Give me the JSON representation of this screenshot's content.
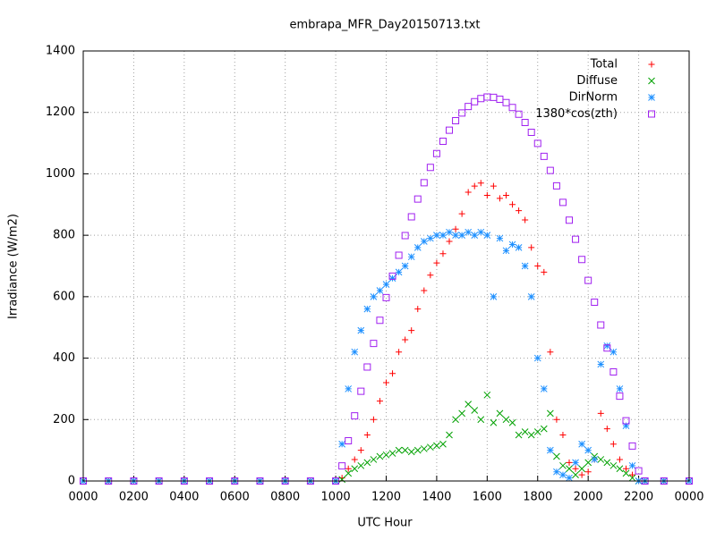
{
  "chart_data": {
    "type": "scatter",
    "title": "embrapa_MFR_Day20150713.txt",
    "x_label": "UTC Hour",
    "y_label": "Irradiance (W/m2)",
    "xlim": [
      0,
      24
    ],
    "ylim": [
      0,
      1400
    ],
    "xticks": [
      {
        "value": 0,
        "label": "0000"
      },
      {
        "value": 2,
        "label": "0200"
      },
      {
        "value": 4,
        "label": "0400"
      },
      {
        "value": 6,
        "label": "0600"
      },
      {
        "value": 8,
        "label": "0800"
      },
      {
        "value": 10,
        "label": "1000"
      },
      {
        "value": 12,
        "label": "1200"
      },
      {
        "value": 14,
        "label": "1400"
      },
      {
        "value": 16,
        "label": "1600"
      },
      {
        "value": 18,
        "label": "1800"
      },
      {
        "value": 20,
        "label": "2000"
      },
      {
        "value": 22,
        "label": "2200"
      },
      {
        "value": 24,
        "label": "0000"
      }
    ],
    "yticks": [
      0,
      200,
      400,
      600,
      800,
      1000,
      1200,
      1400
    ],
    "grid": true,
    "legend": "top-right",
    "x": [
      0,
      1,
      2,
      3,
      4,
      5,
      6,
      7,
      8,
      9,
      10,
      10.25,
      10.5,
      10.75,
      11,
      11.25,
      11.5,
      11.75,
      12,
      12.25,
      12.5,
      12.75,
      13,
      13.25,
      13.5,
      13.75,
      14,
      14.25,
      14.5,
      14.75,
      15,
      15.25,
      15.5,
      15.75,
      16,
      16.25,
      16.5,
      16.75,
      17,
      17.25,
      17.5,
      17.75,
      18,
      18.25,
      18.5,
      18.75,
      19,
      19.25,
      19.5,
      19.75,
      20,
      20.25,
      20.5,
      20.75,
      21,
      21.25,
      21.5,
      21.75,
      22,
      22.25,
      23,
      24
    ],
    "series": [
      {
        "name": "Total",
        "color": "#ff0000",
        "marker": "plus",
        "values": [
          0,
          0,
          0,
          0,
          0,
          0,
          0,
          0,
          0,
          0,
          0,
          10,
          40,
          70,
          100,
          150,
          200,
          260,
          320,
          350,
          420,
          460,
          490,
          560,
          620,
          670,
          710,
          740,
          780,
          820,
          870,
          940,
          960,
          970,
          930,
          960,
          920,
          930,
          900,
          880,
          850,
          760,
          700,
          680,
          420,
          200,
          150,
          60,
          40,
          20,
          30,
          70,
          220,
          170,
          120,
          70,
          40,
          20,
          0,
          0,
          0,
          0
        ]
      },
      {
        "name": "Diffuse",
        "color": "#00a000",
        "marker": "cross",
        "values": [
          0,
          0,
          0,
          0,
          0,
          0,
          0,
          0,
          0,
          0,
          0,
          5,
          25,
          40,
          50,
          60,
          70,
          80,
          85,
          90,
          100,
          100,
          95,
          100,
          105,
          110,
          115,
          120,
          150,
          200,
          220,
          250,
          230,
          200,
          280,
          190,
          220,
          200,
          190,
          150,
          160,
          150,
          160,
          170,
          220,
          80,
          50,
          40,
          20,
          40,
          60,
          80,
          70,
          60,
          50,
          40,
          25,
          10,
          0,
          0,
          0,
          0
        ]
      },
      {
        "name": "DirNorm",
        "color": "#1e90ff",
        "marker": "star",
        "values": [
          0,
          0,
          0,
          0,
          0,
          0,
          0,
          0,
          0,
          0,
          0,
          120,
          300,
          420,
          490,
          560,
          600,
          620,
          640,
          660,
          680,
          700,
          730,
          760,
          780,
          790,
          800,
          800,
          810,
          800,
          800,
          810,
          800,
          810,
          800,
          600,
          790,
          750,
          770,
          760,
          700,
          600,
          400,
          300,
          100,
          30,
          20,
          10,
          60,
          120,
          100,
          70,
          380,
          440,
          420,
          300,
          180,
          50,
          0,
          0,
          0,
          0
        ]
      },
      {
        "name": "1380*cos(zth)",
        "color": "#a020f0",
        "marker": "square",
        "values": [
          0,
          0,
          0,
          0,
          0,
          0,
          0,
          0,
          0,
          0,
          0,
          49,
          131,
          212,
          292,
          371,
          448,
          523,
          597,
          667,
          735,
          799,
          860,
          918,
          971,
          1021,
          1066,
          1106,
          1142,
          1173,
          1198,
          1219,
          1235,
          1245,
          1250,
          1249,
          1243,
          1232,
          1216,
          1194,
          1167,
          1135,
          1099,
          1057,
          1011,
          961,
          907,
          849,
          787,
          721,
          653,
          582,
          508,
          433,
          355,
          276,
          196,
          114,
          33,
          0,
          0,
          0
        ]
      }
    ]
  }
}
